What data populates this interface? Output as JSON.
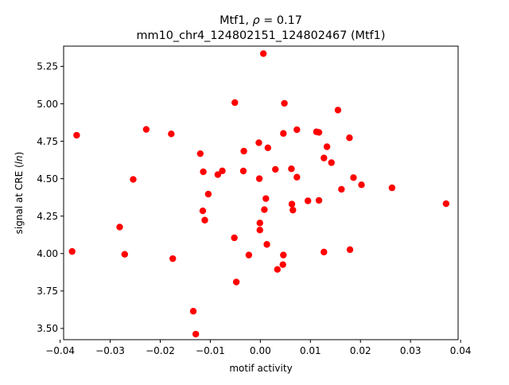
{
  "chart_data": {
    "type": "scatter",
    "title_main": "Mtf1, ",
    "title_rho_symbol": "ρ",
    "title_rho_value": " = 0.17",
    "subtitle": "mm10_chr4_124802151_124802467 (Mtf1)",
    "xlabel": "motif activity",
    "ylabel_prefix": "signal at CRE (",
    "ylabel_italic": "ln",
    "ylabel_suffix": ")",
    "xlim": [
      -0.0393,
      0.0395
    ],
    "ylim": [
      3.425,
      5.385
    ],
    "x_ticks": [
      -0.04,
      -0.03,
      -0.02,
      -0.01,
      0.0,
      0.01,
      0.02,
      0.03,
      0.04
    ],
    "x_tick_labels": [
      "−0.04",
      "−0.03",
      "−0.02",
      "−0.01",
      "0.00",
      "0.01",
      "0.02",
      "0.03",
      "0.04"
    ],
    "y_ticks": [
      3.5,
      3.75,
      4.0,
      4.25,
      4.5,
      4.75,
      5.0,
      5.25
    ],
    "y_tick_labels": [
      "3.50",
      "3.75",
      "4.00",
      "4.25",
      "4.50",
      "4.75",
      "5.00",
      "5.25"
    ],
    "marker_color": "#ff0000",
    "grid": false,
    "points": [
      {
        "x": 0.0006,
        "y": 5.335
      },
      {
        "x": -0.0051,
        "y": 5.008
      },
      {
        "x": 0.0048,
        "y": 5.003
      },
      {
        "x": 0.0155,
        "y": 4.958
      },
      {
        "x": -0.0228,
        "y": 4.829
      },
      {
        "x": 0.0073,
        "y": 4.827
      },
      {
        "x": 0.0112,
        "y": 4.813
      },
      {
        "x": 0.0117,
        "y": 4.809
      },
      {
        "x": 0.0046,
        "y": 4.802
      },
      {
        "x": -0.0178,
        "y": 4.799
      },
      {
        "x": -0.0367,
        "y": 4.79
      },
      {
        "x": 0.0178,
        "y": 4.773
      },
      {
        "x": -0.0003,
        "y": 4.74
      },
      {
        "x": 0.0133,
        "y": 4.713
      },
      {
        "x": 0.0015,
        "y": 4.706
      },
      {
        "x": -0.0033,
        "y": 4.684
      },
      {
        "x": -0.012,
        "y": 4.667
      },
      {
        "x": 0.0127,
        "y": 4.638
      },
      {
        "x": 0.0142,
        "y": 4.607
      },
      {
        "x": 0.0062,
        "y": 4.566
      },
      {
        "x": 0.003,
        "y": 4.562
      },
      {
        "x": -0.0076,
        "y": 4.552
      },
      {
        "x": -0.0034,
        "y": 4.551
      },
      {
        "x": -0.0114,
        "y": 4.546
      },
      {
        "x": -0.0085,
        "y": 4.527
      },
      {
        "x": 0.0073,
        "y": 4.51
      },
      {
        "x": 0.0186,
        "y": 4.507
      },
      {
        "x": -0.0002,
        "y": 4.5
      },
      {
        "x": -0.0254,
        "y": 4.495
      },
      {
        "x": 0.0202,
        "y": 4.459
      },
      {
        "x": 0.0263,
        "y": 4.439
      },
      {
        "x": 0.0162,
        "y": 4.429
      },
      {
        "x": -0.0104,
        "y": 4.397
      },
      {
        "x": 0.0011,
        "y": 4.367
      },
      {
        "x": 0.0117,
        "y": 4.355
      },
      {
        "x": 0.0095,
        "y": 4.352
      },
      {
        "x": 0.0371,
        "y": 4.333
      },
      {
        "x": 0.0063,
        "y": 4.33
      },
      {
        "x": 0.0008,
        "y": 4.293
      },
      {
        "x": 0.0065,
        "y": 4.29
      },
      {
        "x": -0.0115,
        "y": 4.285
      },
      {
        "x": -0.0111,
        "y": 4.223
      },
      {
        "x": -0.0001,
        "y": 4.204
      },
      {
        "x": -0.0281,
        "y": 4.177
      },
      {
        "x": -0.0001,
        "y": 4.157
      },
      {
        "x": -0.0052,
        "y": 4.105
      },
      {
        "x": 0.0013,
        "y": 4.061
      },
      {
        "x": -0.0376,
        "y": 4.014
      },
      {
        "x": 0.0179,
        "y": 4.026
      },
      {
        "x": 0.0127,
        "y": 4.01
      },
      {
        "x": -0.0271,
        "y": 3.995
      },
      {
        "x": 0.0046,
        "y": 3.99
      },
      {
        "x": -0.0023,
        "y": 3.99
      },
      {
        "x": -0.0175,
        "y": 3.966
      },
      {
        "x": 0.0045,
        "y": 3.926
      },
      {
        "x": 0.0034,
        "y": 3.894
      },
      {
        "x": -0.0048,
        "y": 3.81
      },
      {
        "x": -0.0134,
        "y": 3.615
      },
      {
        "x": -0.0129,
        "y": 3.462
      }
    ]
  }
}
